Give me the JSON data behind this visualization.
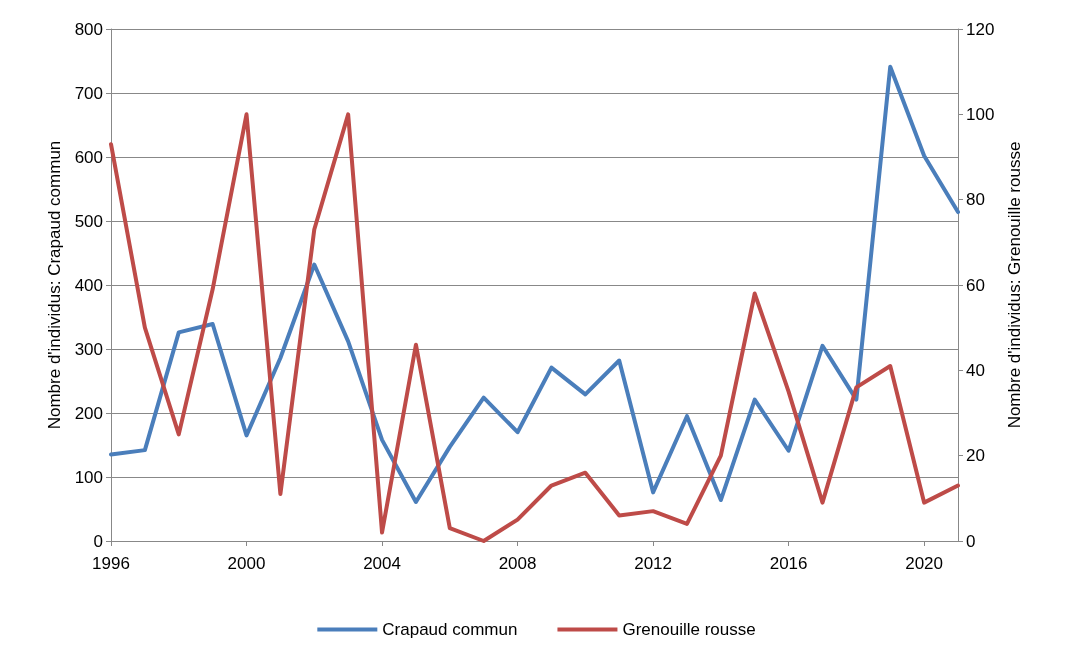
{
  "chart_data": {
    "type": "line",
    "ylabel": "Nombre d'individus: Crapaud commun",
    "y2label": "Nombre d'individus: Grenouille rousse",
    "x": [
      1996,
      1997,
      1998,
      1999,
      2000,
      2001,
      2002,
      2003,
      2004,
      2005,
      2006,
      2007,
      2008,
      2009,
      2010,
      2011,
      2012,
      2013,
      2014,
      2015,
      2016,
      2017,
      2018,
      2019,
      2020,
      2021
    ],
    "series": [
      {
        "name": "Crapaud commun",
        "color": "#4a7ebb",
        "values": [
          135,
          142,
          326,
          339,
          165,
          286,
          432,
          312,
          158,
          61,
          147,
          224,
          170,
          271,
          229,
          282,
          76,
          195,
          64,
          221,
          141,
          305,
          221,
          741,
          602,
          514
        ]
      },
      {
        "name": "Grenouille rousse",
        "color": "#be4b48",
        "axis": "y2",
        "values": [
          93,
          50,
          25,
          59,
          100,
          11,
          73,
          100,
          2,
          46,
          3,
          0,
          5,
          13,
          16,
          6,
          7,
          4,
          20,
          58,
          35,
          9,
          36,
          41,
          9,
          13
        ]
      }
    ],
    "xlim": [
      1996,
      2021
    ],
    "xticks": [
      1996,
      2000,
      2004,
      2008,
      2012,
      2016,
      2020
    ],
    "ylim": [
      0,
      800
    ],
    "yticks": [
      0,
      100,
      200,
      300,
      400,
      500,
      600,
      700,
      800
    ],
    "y2lim": [
      0,
      120
    ],
    "y2ticks": [
      0,
      20,
      40,
      60,
      80,
      100,
      120
    ],
    "grid": "y",
    "legend": "bottom",
    "marker": "none",
    "line_style": "solid"
  }
}
